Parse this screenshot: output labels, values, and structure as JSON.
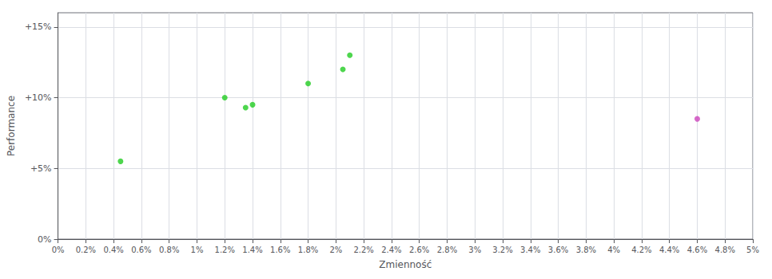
{
  "chart_data": {
    "type": "scatter",
    "xlabel": "Zmienność",
    "ylabel": "Performance",
    "series": [
      {
        "color": "#22cc22",
        "x": [
          0.0045,
          0.012,
          0.0135,
          0.014,
          0.018,
          0.0205,
          0.021
        ],
        "values": [
          0.055,
          0.1,
          0.093,
          0.095,
          0.11,
          0.12,
          0.13
        ]
      },
      {
        "color": "#cc44bb",
        "x": [
          0.046
        ],
        "values": [
          0.085
        ]
      }
    ],
    "xlim": [
      0.0,
      0.05
    ],
    "ylim": [
      0.0,
      0.16
    ],
    "xticks": [
      {
        "value": 0.0,
        "label": "0%"
      },
      {
        "value": 0.002,
        "label": "0.2%"
      },
      {
        "value": 0.004,
        "label": "0.4%"
      },
      {
        "value": 0.006,
        "label": "0.6%"
      },
      {
        "value": 0.008,
        "label": "0.8%"
      },
      {
        "value": 0.01,
        "label": "1%"
      },
      {
        "value": 0.012,
        "label": "1.2%"
      },
      {
        "value": 0.014,
        "label": "1.4%"
      },
      {
        "value": 0.016,
        "label": "1.6%"
      },
      {
        "value": 0.018,
        "label": "1.8%"
      },
      {
        "value": 0.02,
        "label": "2%"
      },
      {
        "value": 0.022,
        "label": "2.2%"
      },
      {
        "value": 0.024,
        "label": "2.4%"
      },
      {
        "value": 0.026,
        "label": "2.6%"
      },
      {
        "value": 0.028,
        "label": "2.8%"
      },
      {
        "value": 0.03,
        "label": "3%"
      },
      {
        "value": 0.032,
        "label": "3.2%"
      },
      {
        "value": 0.034,
        "label": "3.4%"
      },
      {
        "value": 0.036,
        "label": "3.6%"
      },
      {
        "value": 0.038,
        "label": "3.8%"
      },
      {
        "value": 0.04,
        "label": "4%"
      },
      {
        "value": 0.042,
        "label": "4.2%"
      },
      {
        "value": 0.044,
        "label": "4.4%"
      },
      {
        "value": 0.046,
        "label": "4.6%"
      },
      {
        "value": 0.048,
        "label": "4.8%"
      },
      {
        "value": 0.05,
        "label": "5%"
      }
    ],
    "yticks": [
      {
        "value": 0.0,
        "label": "0%"
      },
      {
        "value": 0.05,
        "label": "+5%"
      },
      {
        "value": 0.1,
        "label": "+10%"
      },
      {
        "value": 0.15,
        "label": "+15%"
      }
    ],
    "grid": true
  }
}
